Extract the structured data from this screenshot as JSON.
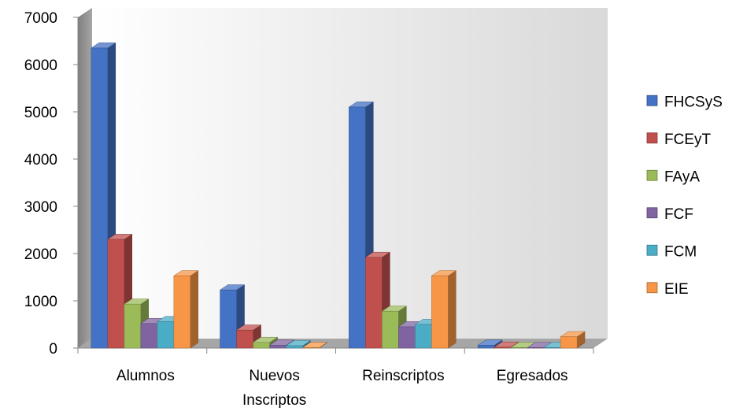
{
  "chart_data": {
    "type": "bar",
    "title": "",
    "xlabel": "",
    "ylabel": "",
    "ylim": [
      0,
      7000
    ],
    "yticks": [
      "0",
      "1000",
      "2000",
      "3000",
      "4000",
      "5000",
      "6000",
      "7000"
    ],
    "categories": [
      [
        "Alumnos"
      ],
      [
        "Nuevos",
        "Inscriptos"
      ],
      [
        "Reinscriptos"
      ],
      [
        "Egresados"
      ]
    ],
    "series": [
      {
        "name": "FHCSyS",
        "color": "#4472C4",
        "values": [
          6350,
          1230,
          5100,
          60
        ]
      },
      {
        "name": "FCEyT",
        "color": "#C0504D",
        "values": [
          2300,
          380,
          1920,
          20
        ]
      },
      {
        "name": "FAyA",
        "color": "#9BBB59",
        "values": [
          930,
          120,
          780,
          10
        ]
      },
      {
        "name": "FCF",
        "color": "#8064A2",
        "values": [
          520,
          60,
          450,
          10
        ]
      },
      {
        "name": "FCM",
        "color": "#4BACC6",
        "values": [
          560,
          50,
          500,
          10
        ]
      },
      {
        "name": "EIE",
        "color": "#F79646",
        "values": [
          1530,
          10,
          1530,
          240
        ]
      }
    ],
    "legend_position": "right",
    "grid": false,
    "style": "3d-clustered-column"
  }
}
